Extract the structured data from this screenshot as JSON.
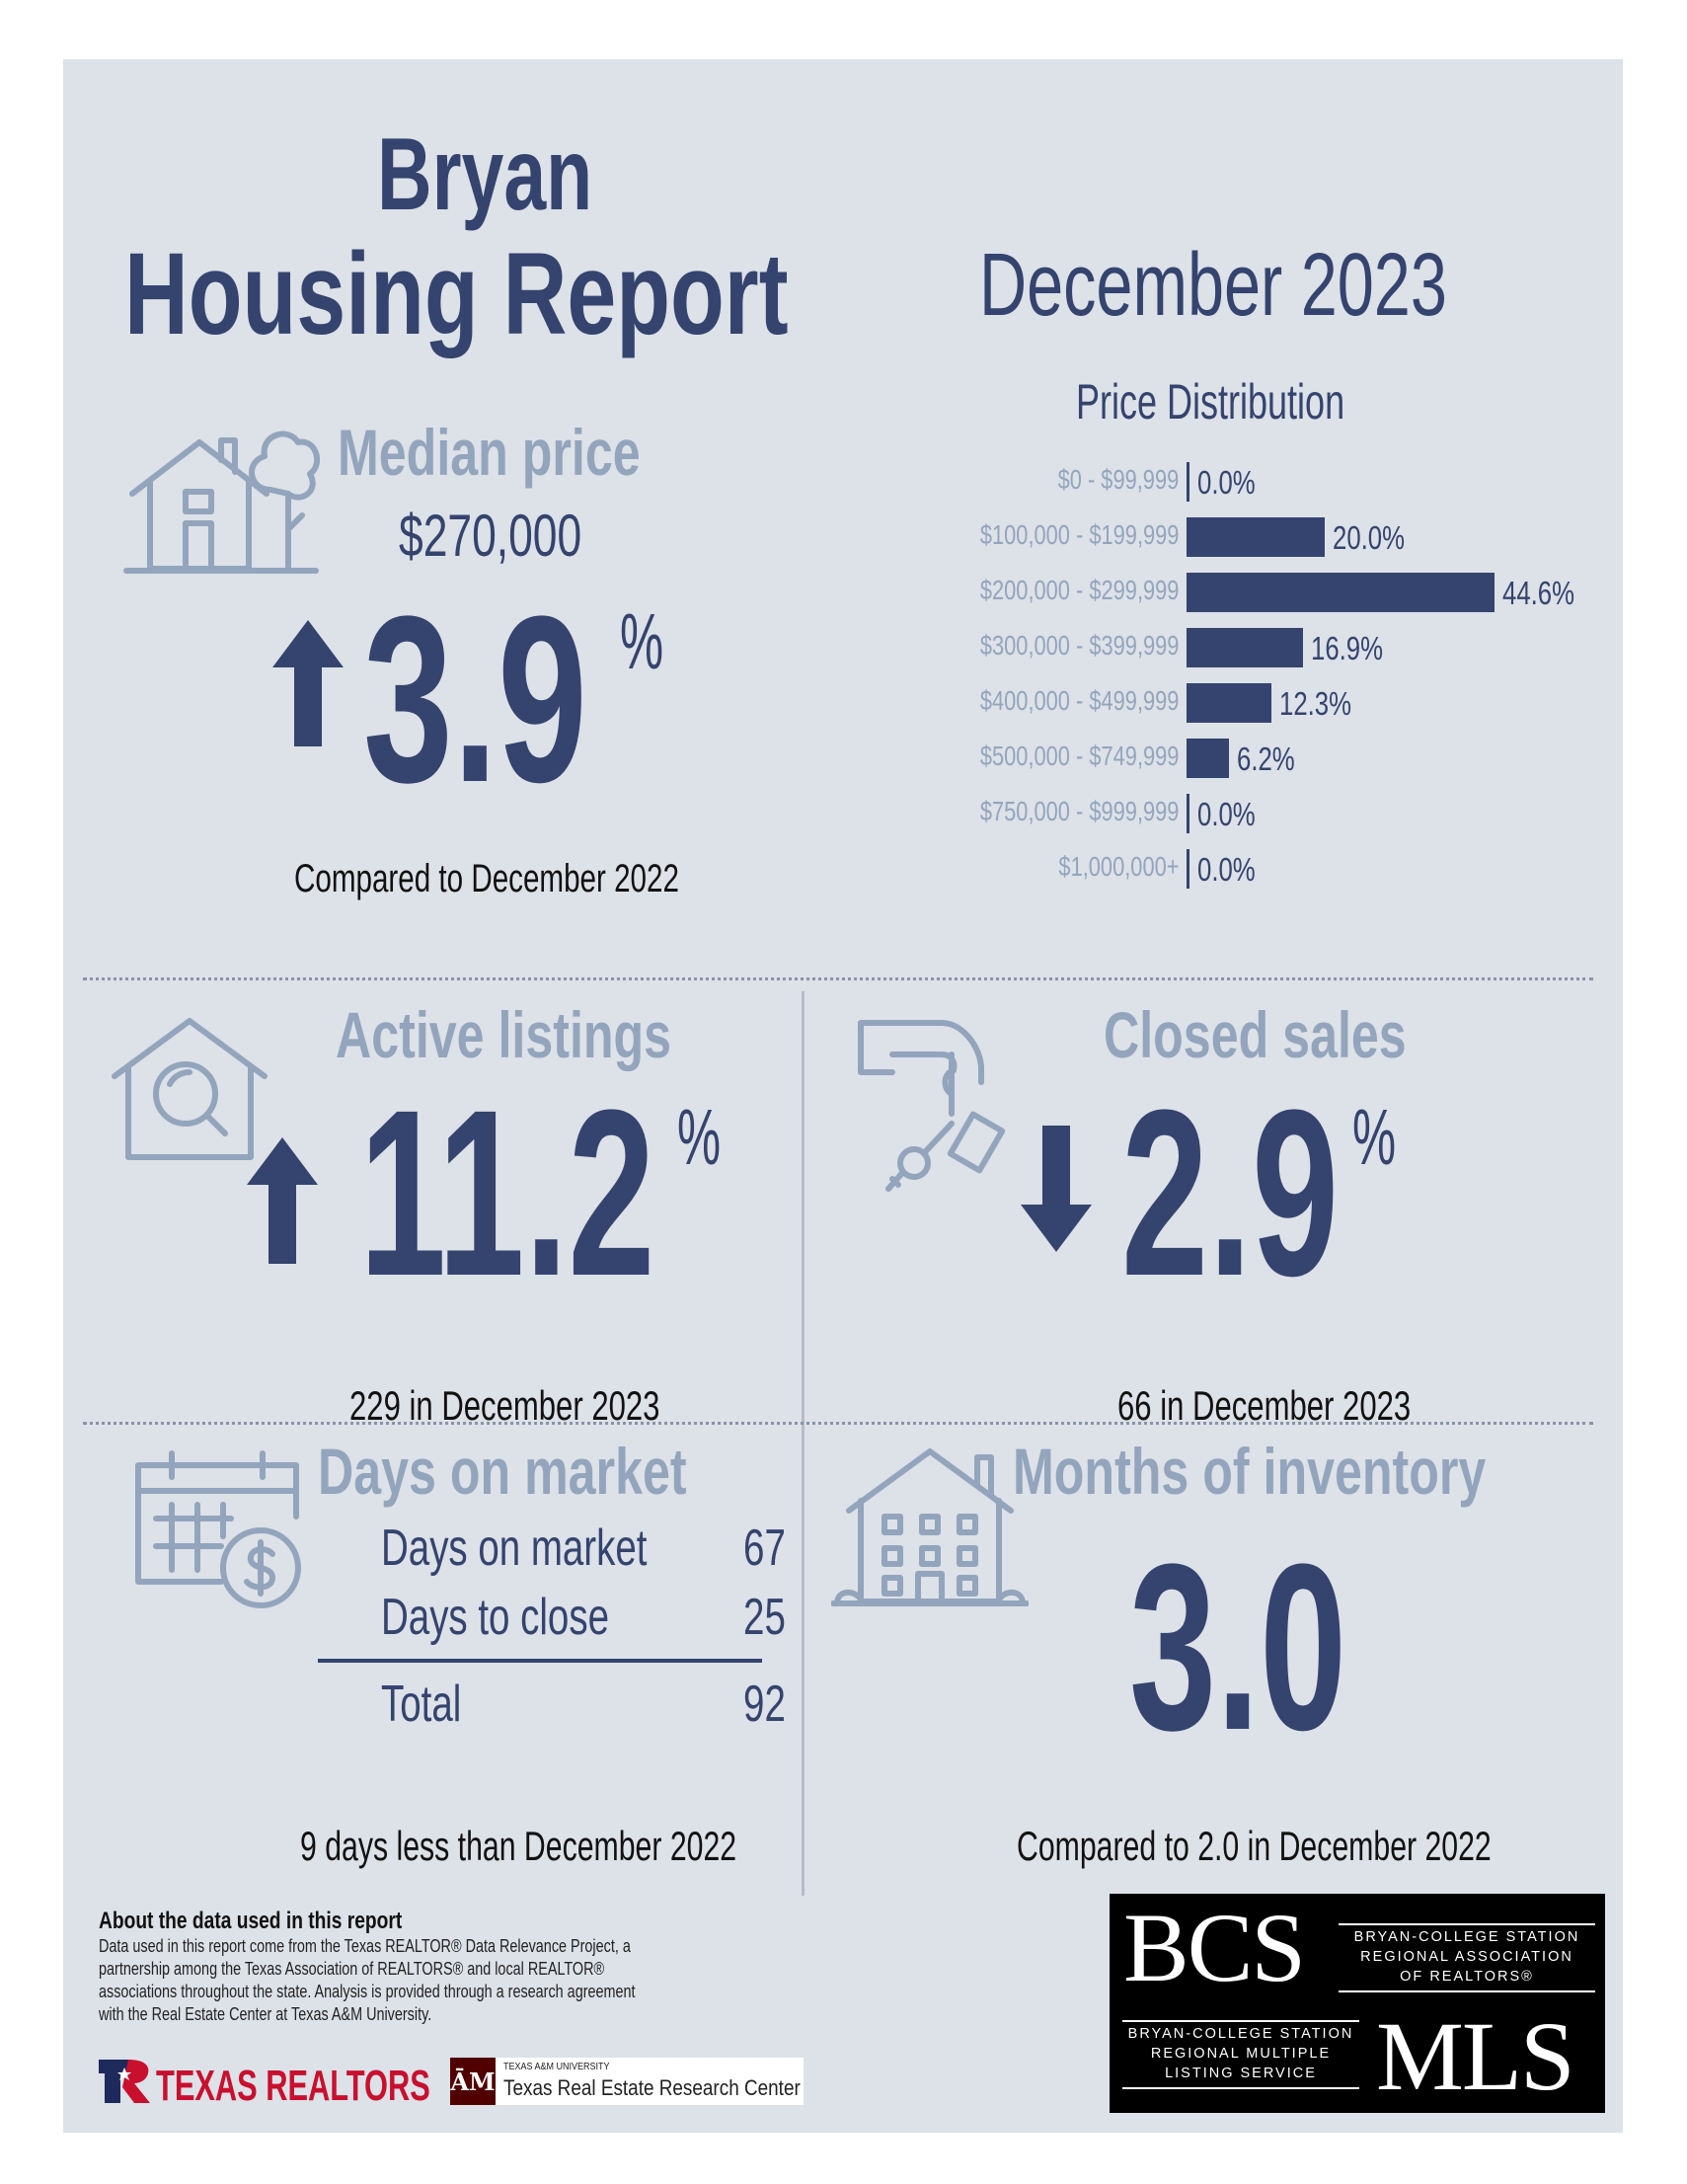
{
  "header": {
    "city": "Bryan",
    "title": "Housing Report",
    "period": "December 2023"
  },
  "median_price": {
    "label": "Median price",
    "value": "$270,000",
    "direction": "up",
    "change": "3.9",
    "unit": "%",
    "note": "Compared to December 2022",
    "icon": "house-tree-icon"
  },
  "price_distribution": {
    "title": "Price Distribution"
  },
  "chart_data": {
    "type": "bar",
    "orientation": "horizontal",
    "title": "Price Distribution",
    "categories": [
      "$0 - $99,999",
      "$100,000 - $199,999",
      "$200,000 - $299,999",
      "$300,000 - $399,999",
      "$400,000 - $499,999",
      "$500,000 - $749,999",
      "$750,000 - $999,999",
      "$1,000,000+"
    ],
    "values": [
      0.0,
      20.0,
      44.6,
      16.9,
      12.3,
      6.2,
      0.0,
      0.0
    ],
    "value_labels": [
      "0.0%",
      "20.0%",
      "44.6%",
      "16.9%",
      "12.3%",
      "6.2%",
      "0.0%",
      "0.0%"
    ],
    "color": "#34446e"
  },
  "active_listings": {
    "label": "Active listings",
    "direction": "up",
    "change": "11.2",
    "unit": "%",
    "note": "229 in December 2023",
    "icon": "house-magnifier-icon"
  },
  "closed_sales": {
    "label": "Closed sales",
    "direction": "down",
    "change": "2.9",
    "unit": "%",
    "note": "66 in December 2023",
    "icon": "hand-keys-icon"
  },
  "days_on_market": {
    "label": "Days on market",
    "rows": [
      {
        "label": "Days on market",
        "value": "67"
      },
      {
        "label": "Days to close",
        "value": "25"
      }
    ],
    "total_label": "Total",
    "total_value": "92",
    "note": "9 days less than December 2022",
    "icon": "calendar-dollar-icon"
  },
  "months_inventory": {
    "label": "Months of inventory",
    "value": "3.0",
    "note": "Compared to 2.0 in December 2022",
    "icon": "apartment-building-icon"
  },
  "footer": {
    "about_title": "About the data used in this report",
    "about_lines": [
      "Data used in this report come from the Texas REALTOR® Data Relevance Project, a",
      "partnership among the Texas Association of REALTORS® and local REALTOR®",
      "associations throughout the state. Analysis is provided through a research agreement",
      "with the Real Estate Center at Texas A&M University."
    ],
    "texas_realtors": "TEXAS REALTORS",
    "tamu_small": "TEXAS A&M UNIVERSITY",
    "tamu_center": "Texas Real Estate Research Center",
    "bcs_logo": {
      "bcs": "BCS",
      "mls": "MLS",
      "assoc_lines": [
        "BRYAN-COLLEGE STATION",
        "REGIONAL ASSOCIATION",
        "OF REALTORS®"
      ],
      "mls_lines": [
        "BRYAN-COLLEGE STATION",
        "REGIONAL MULTIPLE",
        "LISTING SERVICE"
      ]
    }
  },
  "colors": {
    "background": "#dde1e8",
    "primary": "#34446e",
    "muted": "#93a5bc"
  }
}
